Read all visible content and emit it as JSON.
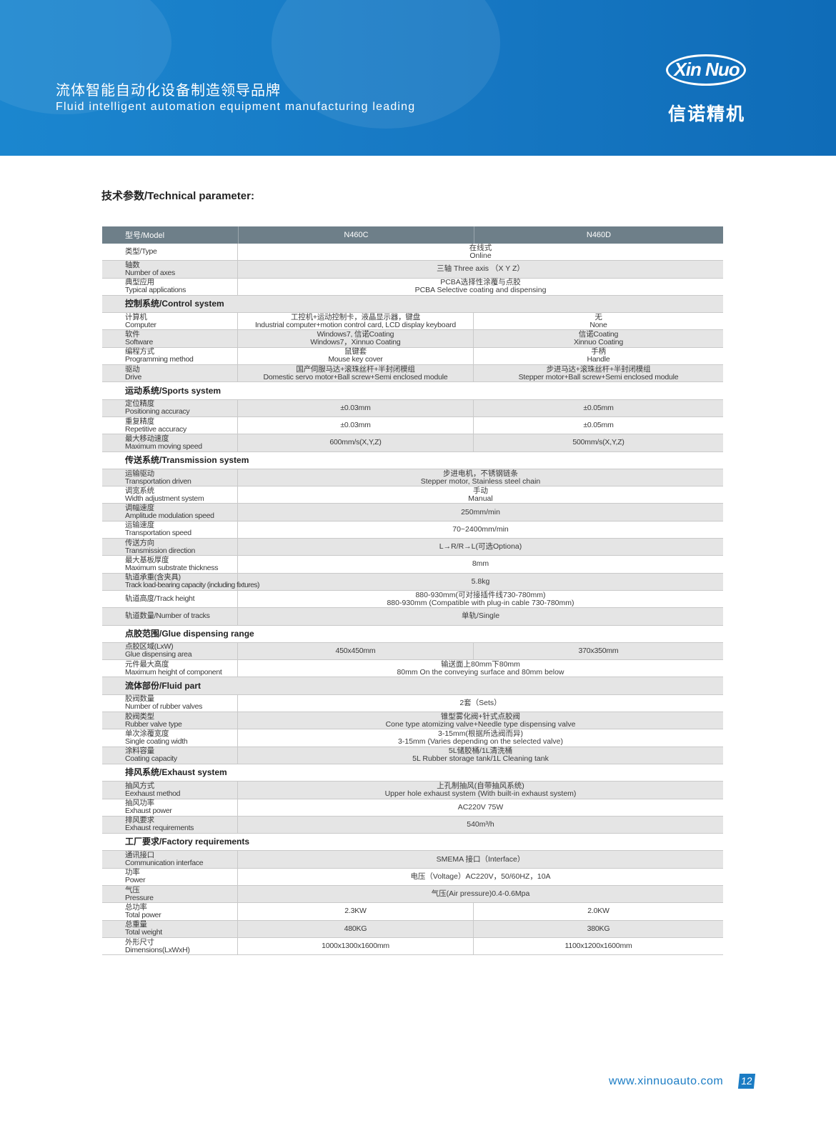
{
  "banner": {
    "slogan_zh": "流体智能自动化设备制造领导品牌",
    "slogan_en": "Fluid intelligent automation equipment manufacturing leading",
    "logo_text": "Xin Nuo",
    "logo_zh": "信诺精机"
  },
  "section_title": "技术参数/Technical parameter:",
  "table": {
    "header": [
      "型号/Model",
      "N460C",
      "N460D"
    ],
    "rows": [
      {
        "label": "类型/Type",
        "v": [
          "在线式",
          "Online"
        ]
      },
      {
        "zh": "轴数",
        "en": "Number of axes",
        "v": [
          "三轴 Three axis （X Y Z）"
        ]
      },
      {
        "zh": "典型应用",
        "en": "Typical applications",
        "v": [
          "PCBA选择性涂覆与点胶",
          "PCBA Selective coating and dispensing"
        ]
      },
      {
        "section": "控制系统/Control system"
      },
      {
        "zh": "计算机",
        "en": "Computer",
        "c": [
          "工控机+运动控制卡，液晶显示器，键盘",
          "Industrial computer+motion control card, LCD display keyboard"
        ],
        "d": [
          "无",
          "None"
        ]
      },
      {
        "zh": "软件",
        "en": "Software",
        "c": [
          "Windows7, 信诺Coating",
          "Windows7，Xinnuo Coating"
        ],
        "d": [
          "信诺Coating",
          "Xinnuo Coating"
        ]
      },
      {
        "zh": "编程方式",
        "en": "Programming method",
        "c": [
          "鼠键套",
          "Mouse key cover"
        ],
        "d": [
          "手柄",
          "Handle"
        ]
      },
      {
        "zh": "驱动",
        "en": "Drive",
        "c": [
          "国产伺服马达+滚珠丝杆+半封闭模组",
          "Domestic servo motor+Ball screw+Semi enclosed module"
        ],
        "d": [
          "步进马达+滚珠丝杆+半封闭模组",
          "Stepper motor+Ball screw+Semi enclosed module"
        ]
      },
      {
        "section": "运动系统/Sports system"
      },
      {
        "zh": "定位精度",
        "en": "Positioning accuracy",
        "c": [
          "±0.03mm"
        ],
        "d": [
          "±0.05mm"
        ]
      },
      {
        "zh": "重复精度",
        "en": "Repetitive accuracy",
        "c": [
          "±0.03mm"
        ],
        "d": [
          "±0.05mm"
        ]
      },
      {
        "zh": "最大移动速度",
        "en": "Maximum moving speed",
        "c": [
          "600mm/s(X,Y,Z)"
        ],
        "d": [
          "500mm/s(X,Y,Z)"
        ]
      },
      {
        "section": "传送系统/Transmission system"
      },
      {
        "zh": "运输驱动",
        "en": "Transportation driven",
        "v": [
          "步进电机，不锈钢链条",
          "Stepper motor, Stainless steel chain"
        ]
      },
      {
        "zh": "调宽系统",
        "en": "Width adjustment system",
        "v": [
          "手动",
          "Manual"
        ]
      },
      {
        "zh": "调幅速度",
        "en": "Amplitude modulation speed",
        "v": [
          "250mm/min"
        ]
      },
      {
        "zh": "运输速度",
        "en": "Transportation speed",
        "v": [
          "70~2400mm/min"
        ]
      },
      {
        "zh": "传送方向",
        "en": "Transmission direction",
        "v": [
          "L→R/R→L(可选Optiona)"
        ]
      },
      {
        "zh": "最大基板厚度",
        "en": "Maximum substrate thickness",
        "v": [
          "8mm"
        ]
      },
      {
        "zh": "轨道承重(含夹具)",
        "en": "Track load-bearing capacity (including fixtures)",
        "v": [
          "5.8kg"
        ]
      },
      {
        "label": "轨道高度/Track height",
        "v": [
          "880-930mm(可对接插件线730-780mm)",
          "880-930mm (Compatible with plug-in cable 730-780mm)"
        ]
      },
      {
        "label": "轨道数量/Number of tracks",
        "v": [
          "单轨/Single"
        ]
      },
      {
        "section": "点胶范围/Glue dispensing range"
      },
      {
        "zh": "点胶区域(LxW)",
        "en": "Glue dispensing area",
        "c": [
          "450x450mm"
        ],
        "d": [
          "370x350mm"
        ]
      },
      {
        "zh": "元件最大高度",
        "en": "Maximum height of component",
        "v": [
          "输送面上80mm下80mm",
          "80mm On the conveying surface and 80mm below"
        ]
      },
      {
        "section": "流体部份/Fluid part"
      },
      {
        "zh": "胶阀数量",
        "en": "Number of rubber valves",
        "v": [
          "2套（Sets）"
        ]
      },
      {
        "zh": "胶阀类型",
        "en": "Rubber valve type",
        "v": [
          "锥型雾化阀+针式点胶阀",
          "Cone type atomizing valve+Needle type dispensing valve"
        ]
      },
      {
        "zh": "单次涂覆宽度",
        "en": "Single coating width",
        "v": [
          "3-15mm(根据所选阀而异)",
          "3-15mm (Varies depending on the selected valve)"
        ]
      },
      {
        "zh": "涂料容量",
        "en": "Coating capacity",
        "v": [
          "5L储胶桶/1L清洗桶",
          "5L Rubber storage tank/1L Cleaning tank"
        ]
      },
      {
        "section": "排风系统/Exhaust system"
      },
      {
        "zh": "抽风方式",
        "en": "Eexhaust method",
        "v": [
          "上孔制抽风(自带抽风系统)",
          "Upper hole exhaust system (With built-in exhaust system)"
        ]
      },
      {
        "zh": "抽风功率",
        "en": "Exhaust power",
        "v": [
          "AC220V 75W"
        ]
      },
      {
        "zh": "排风要求",
        "en": "Exhaust requirements",
        "v": [
          "540m³/h"
        ]
      },
      {
        "section": "工厂要求/Factory requirements"
      },
      {
        "zh": "通讯接口",
        "en": "Communication interface",
        "v": [
          "SMEMA 接口（Interface）"
        ]
      },
      {
        "zh": "功率",
        "en": "Power",
        "v": [
          "电压（Voltage）AC220V，50/60HZ，10A"
        ]
      },
      {
        "zh": "气压",
        "en": "Pressure",
        "v": [
          "气压(Air pressure)0.4-0.6Mpa"
        ]
      },
      {
        "zh": "总功率",
        "en": "Total power",
        "c": [
          "2.3KW"
        ],
        "d": [
          "2.0KW"
        ]
      },
      {
        "zh": "总重量",
        "en": "Total weight",
        "c": [
          "480KG"
        ],
        "d": [
          "380KG"
        ]
      },
      {
        "zh": "外形尺寸",
        "en": "Dimensions(LxWxH)",
        "c": [
          "1000x1300x1600mm"
        ],
        "d": [
          "1100x1200x1600mm"
        ]
      }
    ]
  },
  "footer": {
    "url": "www.xinnuoauto.com",
    "page": "12"
  },
  "colors": {
    "banner": "#1779c4",
    "table_header": "#6e7f89",
    "row_alt": "#e5e5e5",
    "accent": "#1b7cc4"
  }
}
